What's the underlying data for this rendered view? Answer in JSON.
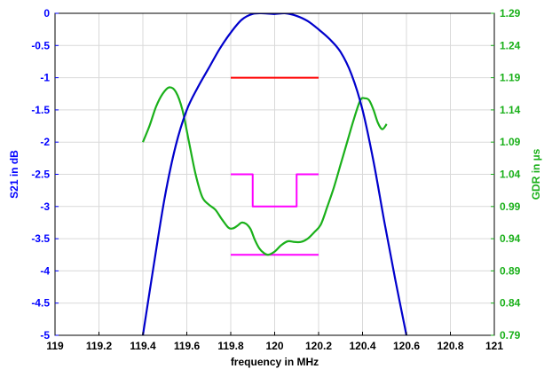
{
  "chart_data": {
    "type": "line",
    "xlabel": "frequency in MHz",
    "ylabel_left": "S21 in dB",
    "ylabel_right": "GDR in µs",
    "xlim": [
      119,
      121
    ],
    "ylim_left": [
      -5,
      0
    ],
    "ylim_right": [
      0.79,
      1.29
    ],
    "x_ticks": [
      "119",
      "119.2",
      "119.4",
      "119.6",
      "119.8",
      "120",
      "120.2",
      "120.4",
      "120.6",
      "120.8",
      "121"
    ],
    "y_left_ticks": [
      "0",
      "-0.5",
      "-1",
      "-1.5",
      "-2",
      "-2.5",
      "-3",
      "-3.5",
      "-4",
      "-4.5",
      "-5"
    ],
    "y_right_ticks": [
      "1.29",
      "1.24",
      "1.19",
      "1.14",
      "1.09",
      "1.04",
      "0.99",
      "0.94",
      "0.89",
      "0.84",
      "0.79"
    ],
    "grid": true,
    "colors": {
      "s21": "#0000cc",
      "gdr": "#1ab01a",
      "red_mask": "#ff0000",
      "magenta_mask": "#ff00ff",
      "left_axis": "#0000ff",
      "right_axis": "#1ab01a",
      "grid": "#d9d9d9"
    },
    "series": [
      {
        "key": "s21",
        "axis": "left",
        "x": [
          119.4,
          119.45,
          119.5,
          119.55,
          119.6,
          119.65,
          119.7,
          119.75,
          119.8,
          119.85,
          119.9,
          119.95,
          120.0,
          120.05,
          120.1,
          120.15,
          120.2,
          120.25,
          120.3,
          120.35,
          120.4,
          120.45,
          120.5,
          120.55,
          120.6
        ],
        "y": [
          -5.0,
          -3.9,
          -2.85,
          -2.05,
          -1.5,
          -1.15,
          -0.85,
          -0.55,
          -0.3,
          -0.1,
          -0.01,
          0.0,
          -0.01,
          0.0,
          -0.04,
          -0.12,
          -0.25,
          -0.4,
          -0.6,
          -0.95,
          -1.5,
          -2.3,
          -3.25,
          -4.15,
          -5.0
        ]
      },
      {
        "key": "gdr",
        "axis": "right",
        "x": [
          119.4,
          119.43,
          119.46,
          119.49,
          119.52,
          119.55,
          119.58,
          119.61,
          119.64,
          119.67,
          119.7,
          119.73,
          119.76,
          119.79,
          119.81,
          119.83,
          119.85,
          119.87,
          119.89,
          119.91,
          119.93,
          119.95,
          119.97,
          120.0,
          120.03,
          120.06,
          120.09,
          120.12,
          120.15,
          120.18,
          120.21,
          120.24,
          120.27,
          120.3,
          120.33,
          120.36,
          120.39,
          120.41,
          120.43,
          120.45,
          120.47,
          120.49,
          120.51
        ],
        "y": [
          1.09,
          1.115,
          1.145,
          1.165,
          1.175,
          1.168,
          1.14,
          1.09,
          1.04,
          1.005,
          0.993,
          0.985,
          0.97,
          0.957,
          0.956,
          0.96,
          0.965,
          0.963,
          0.955,
          0.938,
          0.925,
          0.918,
          0.915,
          0.92,
          0.93,
          0.936,
          0.935,
          0.935,
          0.94,
          0.95,
          0.962,
          0.99,
          1.02,
          1.055,
          1.09,
          1.125,
          1.155,
          1.158,
          1.155,
          1.14,
          1.12,
          1.11,
          1.118
        ]
      },
      {
        "key": "red_mask",
        "axis": "left",
        "x": [
          119.8,
          120.2
        ],
        "y": [
          -1.0,
          -1.0
        ]
      },
      {
        "key": "magenta_upper",
        "axis": "left",
        "x": [
          119.8,
          119.9,
          119.9,
          120.1,
          120.1,
          120.2
        ],
        "y": [
          -2.5,
          -2.5,
          -3.0,
          -3.0,
          -2.5,
          -2.5
        ]
      },
      {
        "key": "magenta_lower",
        "axis": "left",
        "x": [
          119.8,
          120.2
        ],
        "y": [
          -3.75,
          -3.75
        ]
      }
    ]
  }
}
